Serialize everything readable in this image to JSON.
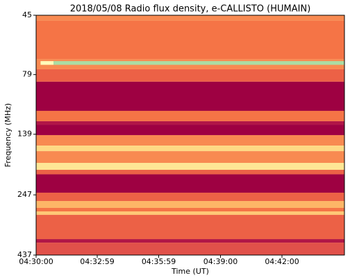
{
  "chart_data": {
    "type": "spectrogram",
    "title": "2018/05/08  Radio flux density, e-CALLISTO (HUMAIN)",
    "xlabel": "Time (UT)",
    "ylabel": "Frequency (MHz)",
    "xlim": [
      "04:30:00",
      "04:45:03"
    ],
    "xticks": [
      "04:30:00",
      "04:32:59",
      "04:35:59",
      "04:39:00",
      "04:42:00"
    ],
    "ylim": [
      45,
      437
    ],
    "yscale": "log",
    "yinverted": true,
    "yticks": [
      45,
      79,
      139,
      247,
      437
    ],
    "colormap": [
      "#9e0142",
      "#d53e4f",
      "#f46d43",
      "#fdae61",
      "#fee08b",
      "#ffffbf",
      "#e6f598",
      "#abdda4"
    ],
    "bands": {
      "edges": [
        45,
        47.4,
        68.1,
        75.1,
        84.5,
        111.4,
        122.9,
        127.1,
        140.2,
        154.8,
        163.2,
        182.4,
        194.8,
        203.3,
        241.9,
        261.8,
        279.5,
        288.9,
        298.6,
        375.8,
        388.4,
        437
      ],
      "values": [
        0.35,
        0.3,
        0.35,
        0.25,
        0,
        0.3,
        0.05,
        0,
        0.35,
        0.55,
        0.35,
        0.6,
        0.25,
        0,
        0.25,
        0.45,
        0.3,
        0.5,
        0.25,
        0.05,
        0.2
      ]
    },
    "features": [
      {
        "x": [
          "04:30:13",
          "04:30:51"
        ],
        "y": [
          69.5,
          72
        ],
        "value": 0.7
      },
      {
        "x": [
          "04:30:51",
          "04:45:03"
        ],
        "y": [
          69.5,
          72
        ],
        "value": 1
      }
    ]
  }
}
